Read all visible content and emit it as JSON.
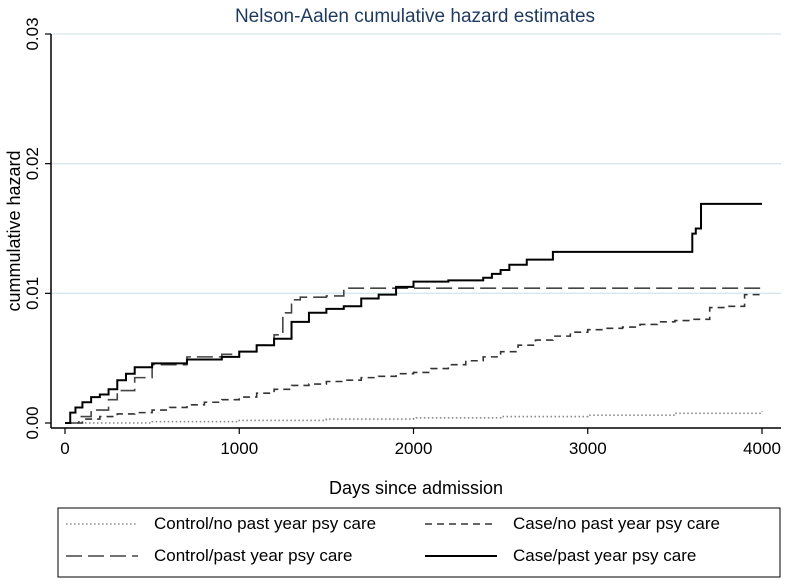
{
  "chart_data": {
    "type": "line",
    "title": "Nelson-Aalen cumulative hazard estimates",
    "xlabel": "Days since admission",
    "ylabel": "cummulative hazard",
    "xlim": [
      0,
      4050
    ],
    "ylim": [
      0,
      0.03
    ],
    "xticks": [
      0,
      1000,
      2000,
      3000,
      4000
    ],
    "xtick_labels": [
      "0",
      "1000",
      "2000",
      "3000",
      "4000"
    ],
    "yticks": [
      0,
      0.01,
      0.02,
      0.03
    ],
    "ytick_labels": [
      "0.00",
      "0.01",
      "0.02",
      "0.03"
    ],
    "grid": "horizontal",
    "legend_position": "bottom",
    "series": [
      {
        "name": "Control/no past year psy care",
        "style": "dotted",
        "color": "#888888",
        "x": [
          0,
          500,
          1000,
          1500,
          2000,
          2500,
          3000,
          3500,
          4000
        ],
        "y": [
          0.0,
          0.0001,
          0.0002,
          0.0003,
          0.0004,
          0.0005,
          0.0006,
          0.00075,
          0.0009
        ]
      },
      {
        "name": "Case/no past year psy care",
        "style": "short-dash",
        "color": "#333333",
        "x": [
          0,
          100,
          200,
          300,
          400,
          500,
          600,
          700,
          800,
          900,
          1000,
          1100,
          1200,
          1300,
          1400,
          1500,
          1600,
          1700,
          1800,
          1900,
          2000,
          2100,
          2200,
          2300,
          2400,
          2500,
          2600,
          2700,
          2800,
          2900,
          3000,
          3100,
          3200,
          3300,
          3400,
          3500,
          3600,
          3700,
          3800,
          3900,
          4000
        ],
        "y": [
          0.0,
          0.0003,
          0.0005,
          0.0007,
          0.0008,
          0.001,
          0.0012,
          0.0014,
          0.0016,
          0.0018,
          0.002,
          0.0023,
          0.0026,
          0.0029,
          0.003,
          0.0032,
          0.0033,
          0.0035,
          0.0036,
          0.0038,
          0.0039,
          0.0042,
          0.0045,
          0.0048,
          0.0051,
          0.0055,
          0.006,
          0.0064,
          0.0067,
          0.007,
          0.0072,
          0.0073,
          0.0074,
          0.0076,
          0.0078,
          0.0079,
          0.008,
          0.0089,
          0.009,
          0.0099,
          0.01
        ]
      },
      {
        "name": "Control/past year psy care",
        "style": "long-dash",
        "color": "#444444",
        "x": [
          0,
          80,
          150,
          250,
          300,
          400,
          500,
          700,
          900,
          1000,
          1100,
          1200,
          1250,
          1300,
          1350,
          1400,
          1500,
          1600,
          1650,
          2000,
          2500,
          3000,
          3500,
          4000
        ],
        "y": [
          0.0,
          0.0005,
          0.001,
          0.0018,
          0.0025,
          0.0035,
          0.0045,
          0.0051,
          0.0053,
          0.0055,
          0.006,
          0.0068,
          0.0085,
          0.0095,
          0.0097,
          0.0097,
          0.0098,
          0.0104,
          0.0104,
          0.0104,
          0.0104,
          0.0104,
          0.0104,
          0.0104
        ]
      },
      {
        "name": "Case/past year psy care",
        "style": "solid",
        "color": "#000000",
        "x": [
          0,
          30,
          60,
          100,
          150,
          200,
          250,
          300,
          350,
          400,
          500,
          700,
          900,
          1000,
          1100,
          1200,
          1300,
          1400,
          1500,
          1600,
          1700,
          1800,
          1900,
          2000,
          2200,
          2400,
          2450,
          2500,
          2550,
          2650,
          2800,
          3000,
          3200,
          3500,
          3600,
          3620,
          3650,
          3700,
          4000
        ],
        "y": [
          0.0,
          0.0008,
          0.0012,
          0.0016,
          0.002,
          0.0022,
          0.0026,
          0.0033,
          0.0038,
          0.0043,
          0.0046,
          0.0049,
          0.0051,
          0.0055,
          0.006,
          0.0065,
          0.0078,
          0.0085,
          0.0088,
          0.009,
          0.0096,
          0.0099,
          0.0105,
          0.0109,
          0.011,
          0.0112,
          0.0115,
          0.0118,
          0.0122,
          0.0126,
          0.0132,
          0.0132,
          0.0132,
          0.0132,
          0.0146,
          0.015,
          0.0169,
          0.0169,
          0.0169
        ]
      }
    ]
  }
}
